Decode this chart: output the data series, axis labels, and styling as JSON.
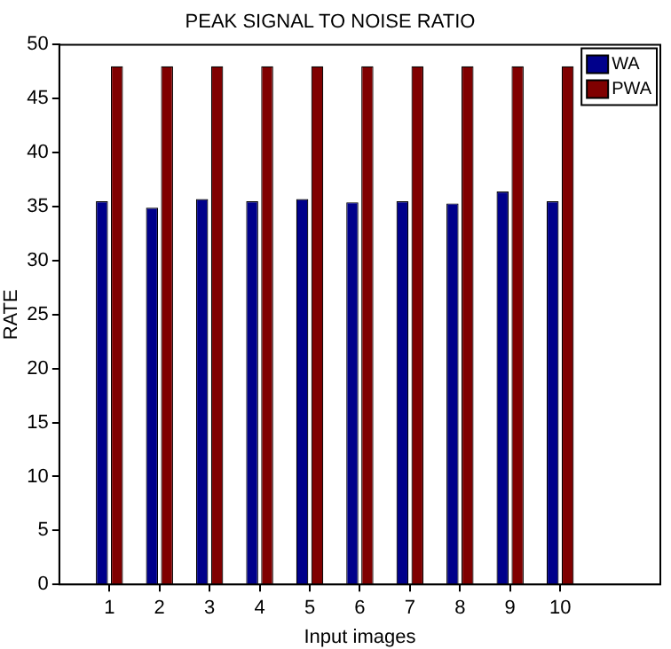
{
  "chart_data": {
    "type": "bar",
    "title": "PEAK SIGNAL TO NOISE RATIO",
    "xlabel": "Input images",
    "ylabel": "RATE",
    "x": [
      1,
      2,
      3,
      4,
      5,
      6,
      7,
      8,
      9,
      10
    ],
    "series": [
      {
        "name": "WA",
        "color": "#00008b",
        "values": [
          35.5,
          34.9,
          35.7,
          35.5,
          35.7,
          35.4,
          35.5,
          35.3,
          36.4,
          35.5
        ]
      },
      {
        "name": "PWA",
        "color": "#800000",
        "values": [
          48,
          48,
          48,
          48,
          48,
          48,
          48,
          48,
          48,
          48
        ]
      }
    ],
    "xlim": [
      0,
      12
    ],
    "xticks": [
      1,
      2,
      3,
      4,
      5,
      6,
      7,
      8,
      9,
      10
    ],
    "ylim": [
      0,
      50
    ],
    "yticks": [
      0,
      5,
      10,
      15,
      20,
      25,
      30,
      35,
      40,
      45,
      50
    ],
    "legend": "top right"
  }
}
